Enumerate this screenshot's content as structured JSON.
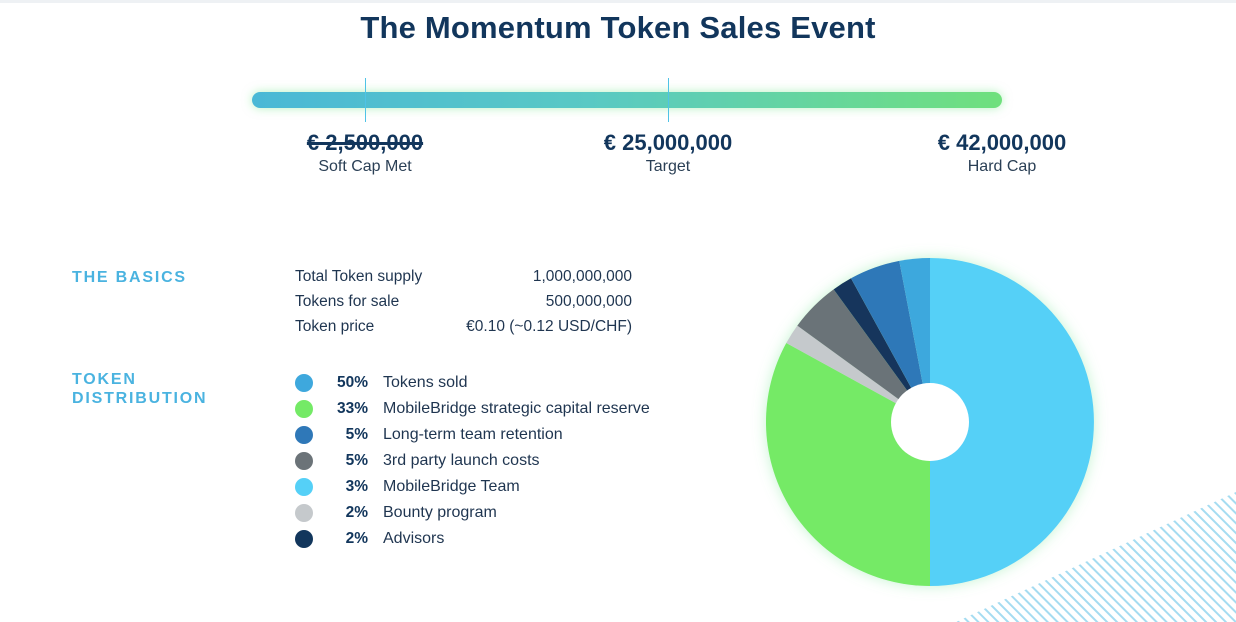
{
  "title": "The Momentum Token Sales Event",
  "progress": {
    "milestones": [
      {
        "amount": "€ 2,500,000",
        "label": "Soft Cap Met",
        "struck": true
      },
      {
        "amount": "€ 25,000,000",
        "label": "Target",
        "struck": false
      },
      {
        "amount": "€ 42,000,000",
        "label": "Hard Cap",
        "struck": false
      }
    ]
  },
  "basics": {
    "heading": "THE BASICS",
    "rows": [
      {
        "label": "Total Token supply",
        "value": "1,000,000,000"
      },
      {
        "label": "Tokens for sale",
        "value": "500,000,000"
      },
      {
        "label": "Token price",
        "value": "€0.10 (~0.12 USD/CHF)"
      }
    ]
  },
  "distribution": {
    "heading_line1": "TOKEN",
    "heading_line2": "DISTRIBUTION"
  },
  "chart_data": {
    "type": "pie",
    "donut": true,
    "categories": [
      "Tokens sold",
      "MobileBridge strategic capital reserve",
      "Long-term team retention",
      "3rd party launch costs",
      "MobileBridge Team",
      "Bounty program",
      "Advisors"
    ],
    "values": [
      50,
      33,
      5,
      5,
      3,
      2,
      2
    ],
    "labels": [
      "50%",
      "33%",
      "5%",
      "5%",
      "3%",
      "2%",
      "2%"
    ],
    "colors": [
      "#3ea8dd",
      "#74ea66",
      "#2f78b8",
      "#6b7378",
      "#55d0f7",
      "#c5c9cc",
      "#12365c"
    ],
    "slice_colors": [
      "#55d0f7",
      "#74ea66",
      "#c5c9cc",
      "#6b7378",
      "#12365c",
      "#2f78b8",
      "#3ea8dd"
    ],
    "slice_order": [
      0,
      1,
      5,
      3,
      6,
      2,
      4
    ],
    "start_angle_deg": 0,
    "direction": "clockwise",
    "legend_position": "left"
  }
}
